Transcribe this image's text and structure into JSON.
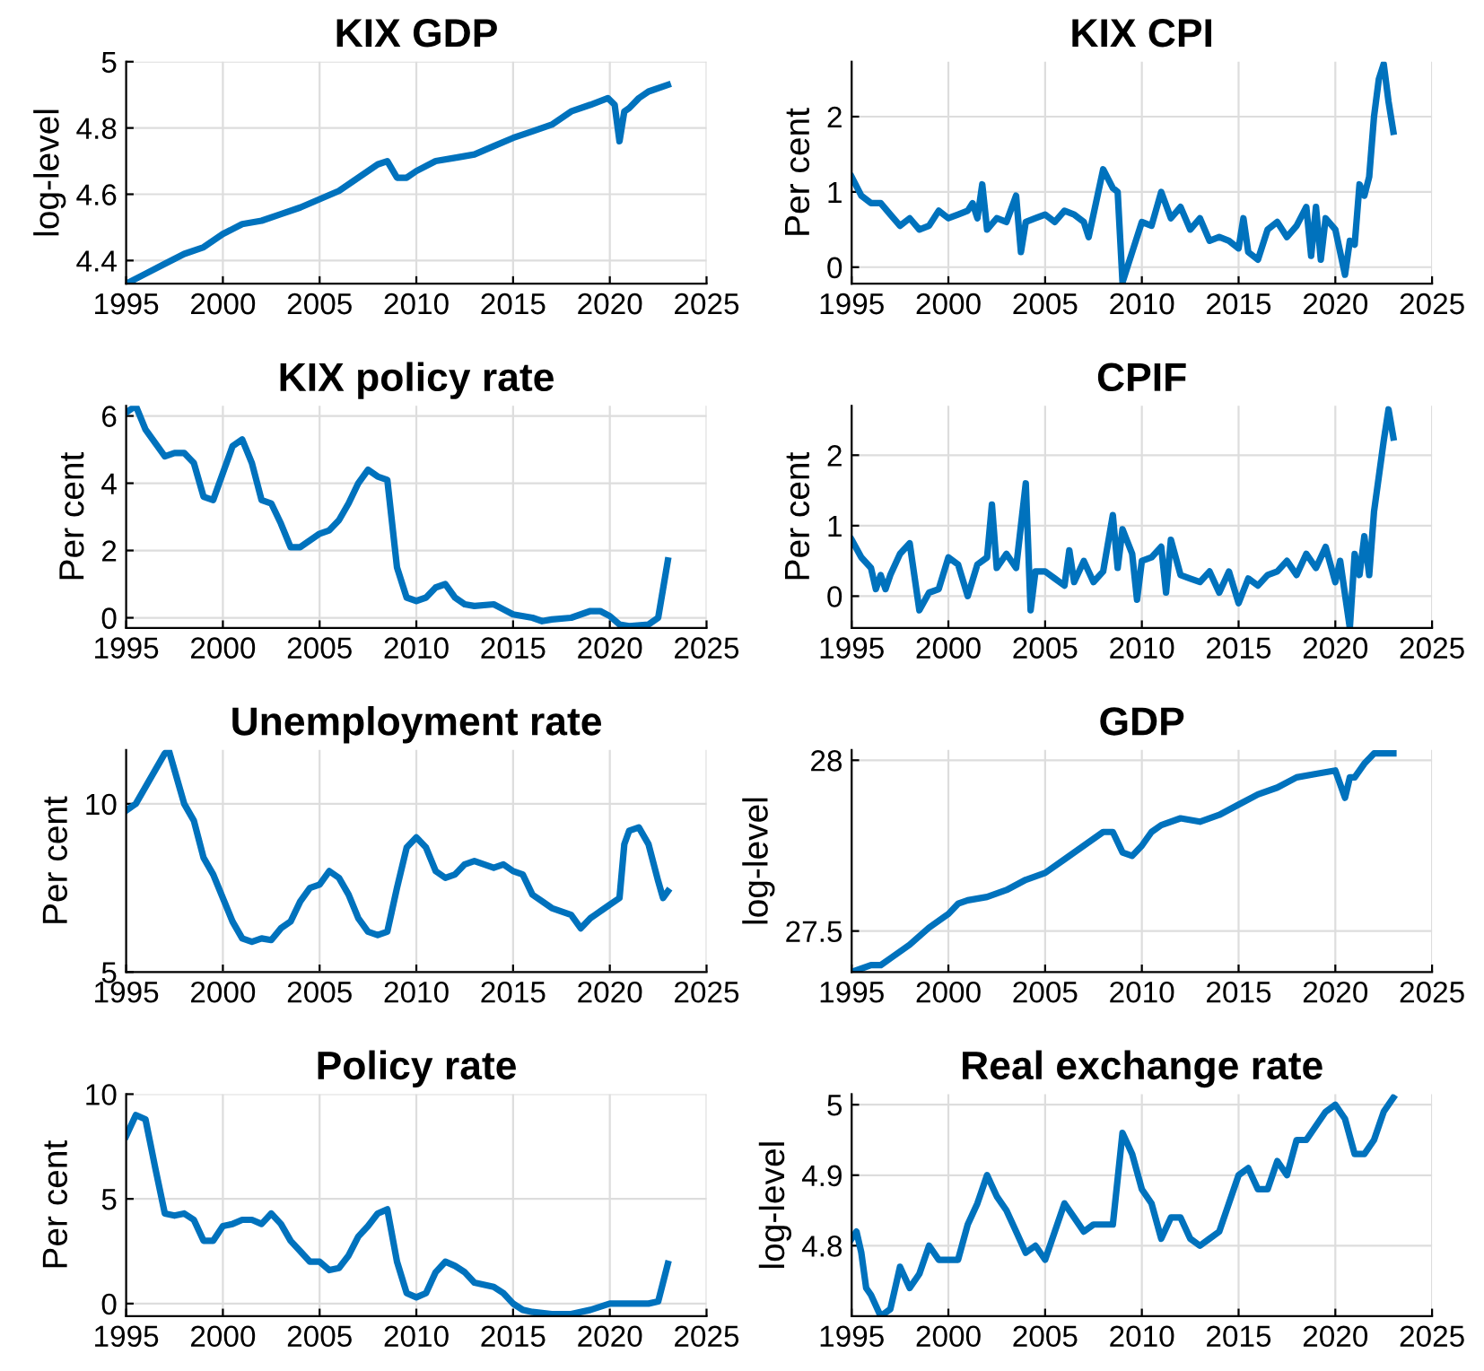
{
  "chart_data": [
    {
      "type": "line",
      "title": "KIX GDP",
      "ylabel": "log-level",
      "grid": true,
      "xlim": [
        1995,
        2025
      ],
      "xticks": [
        1995,
        2000,
        2005,
        2010,
        2015,
        2020,
        2025
      ],
      "ylim": [
        4.33,
        5.0
      ],
      "yticks": [
        4.4,
        4.6,
        4.8,
        5
      ],
      "x": [
        1995,
        1996,
        1997,
        1998,
        1999,
        2000,
        2001,
        2002,
        2003,
        2004,
        2005,
        2006,
        2007,
        2008,
        2008.5,
        2009,
        2009.5,
        2010,
        2011,
        2012,
        2013,
        2014,
        2015,
        2016,
        2017,
        2018,
        2019,
        2019.9,
        2020.25,
        2020.5,
        2020.75,
        2021,
        2021.5,
        2022,
        2023
      ],
      "series": [
        {
          "color": "#0072bd",
          "values": [
            4.33,
            4.36,
            4.39,
            4.42,
            4.44,
            4.48,
            4.51,
            4.52,
            4.54,
            4.56,
            4.585,
            4.61,
            4.65,
            4.69,
            4.7,
            4.65,
            4.65,
            4.67,
            4.7,
            4.71,
            4.72,
            4.745,
            4.77,
            4.79,
            4.81,
            4.85,
            4.87,
            4.89,
            4.87,
            4.76,
            4.85,
            4.86,
            4.89,
            4.91,
            4.93
          ]
        }
      ]
    },
    {
      "type": "line",
      "title": "KIX CPI",
      "ylabel": "Per cent",
      "grid": true,
      "xlim": [
        1995,
        2025
      ],
      "xticks": [
        1995,
        2000,
        2005,
        2010,
        2015,
        2020,
        2025
      ],
      "ylim": [
        -0.22,
        2.73
      ],
      "yticks": [
        0,
        1,
        2
      ],
      "x": [
        1995,
        1995.5,
        1996,
        1996.5,
        1997,
        1997.5,
        1998,
        1998.5,
        1999,
        1999.5,
        2000,
        2000.5,
        2001,
        2001.25,
        2001.5,
        2001.75,
        2002,
        2002.5,
        2003,
        2003.5,
        2003.75,
        2004,
        2004.5,
        2005,
        2005.5,
        2006,
        2006.5,
        2007,
        2007.25,
        2007.5,
        2008,
        2008.5,
        2008.75,
        2009,
        2009.5,
        2010,
        2010.5,
        2011,
        2011.5,
        2012,
        2012.5,
        2013,
        2013.5,
        2014,
        2014.5,
        2015,
        2015.25,
        2015.5,
        2016,
        2016.5,
        2017,
        2017.5,
        2018,
        2018.5,
        2018.75,
        2019,
        2019.25,
        2019.5,
        2020,
        2020.5,
        2020.75,
        2021,
        2021.25,
        2021.5,
        2021.75,
        2022,
        2022.25,
        2022.5,
        2022.75,
        2023
      ],
      "series": [
        {
          "color": "#0072bd",
          "values": [
            1.2,
            0.95,
            0.85,
            0.85,
            0.7,
            0.55,
            0.65,
            0.5,
            0.55,
            0.75,
            0.65,
            0.7,
            0.75,
            0.85,
            0.65,
            1.1,
            0.5,
            0.65,
            0.6,
            0.95,
            0.2,
            0.6,
            0.65,
            0.7,
            0.6,
            0.75,
            0.7,
            0.6,
            0.4,
            0.7,
            1.3,
            1.05,
            1.0,
            -0.2,
            0.2,
            0.6,
            0.55,
            1.0,
            0.65,
            0.8,
            0.5,
            0.65,
            0.35,
            0.4,
            0.35,
            0.25,
            0.65,
            0.2,
            0.1,
            0.5,
            0.6,
            0.4,
            0.55,
            0.8,
            0.15,
            0.8,
            0.1,
            0.65,
            0.5,
            -0.1,
            0.35,
            0.3,
            1.1,
            0.95,
            1.2,
            2.0,
            2.5,
            2.7,
            2.2,
            1.8
          ]
        }
      ]
    },
    {
      "type": "line",
      "title": "KIX policy rate",
      "ylabel": "Per cent",
      "grid": true,
      "xlim": [
        1995,
        2025
      ],
      "xticks": [
        1995,
        2000,
        2005,
        2010,
        2015,
        2020,
        2025
      ],
      "ylim": [
        -0.3,
        6.3
      ],
      "yticks": [
        0,
        2,
        4,
        6
      ],
      "x": [
        1995,
        1995.5,
        1996,
        1996.5,
        1997,
        1997.5,
        1998,
        1998.5,
        1999,
        1999.5,
        2000,
        2000.5,
        2001,
        2001.5,
        2002,
        2002.5,
        2003,
        2003.5,
        2004,
        2004.5,
        2005,
        2005.5,
        2006,
        2006.5,
        2007,
        2007.5,
        2008,
        2008.5,
        2009,
        2009.5,
        2010,
        2010.5,
        2011,
        2011.5,
        2012,
        2012.5,
        2013,
        2014,
        2014.5,
        2015,
        2016,
        2016.5,
        2017,
        2018,
        2019,
        2019.5,
        2020,
        2020.5,
        2021,
        2022,
        2022.5,
        2023
      ],
      "series": [
        {
          "color": "#0072bd",
          "values": [
            6.1,
            6.3,
            5.6,
            5.2,
            4.8,
            4.9,
            4.9,
            4.6,
            3.6,
            3.5,
            4.3,
            5.1,
            5.3,
            4.6,
            3.5,
            3.4,
            2.8,
            2.1,
            2.1,
            2.3,
            2.5,
            2.6,
            2.9,
            3.4,
            4.0,
            4.4,
            4.2,
            4.1,
            1.5,
            0.6,
            0.5,
            0.6,
            0.9,
            1.0,
            0.6,
            0.4,
            0.35,
            0.4,
            0.25,
            0.1,
            0.0,
            -0.1,
            -0.05,
            0.0,
            0.2,
            0.2,
            0.05,
            -0.2,
            -0.25,
            -0.2,
            0.0,
            1.7
          ]
        }
      ]
    },
    {
      "type": "line",
      "title": "CPIF",
      "ylabel": "Per cent",
      "grid": true,
      "xlim": [
        1995,
        2025
      ],
      "xticks": [
        1995,
        2000,
        2005,
        2010,
        2015,
        2020,
        2025
      ],
      "ylim": [
        -0.45,
        2.7
      ],
      "yticks": [
        0,
        1,
        2
      ],
      "x": [
        1995,
        1995.5,
        1996,
        1996.25,
        1996.5,
        1996.75,
        1997,
        1997.5,
        1998,
        1998.5,
        1999,
        1999.5,
        2000,
        2000.5,
        2001,
        2001.5,
        2002,
        2002.25,
        2002.5,
        2003,
        2003.5,
        2004,
        2004.25,
        2004.5,
        2005,
        2005.5,
        2006,
        2006.25,
        2006.5,
        2007,
        2007.5,
        2008,
        2008.5,
        2008.75,
        2009,
        2009.5,
        2009.75,
        2010,
        2010.5,
        2011,
        2011.25,
        2011.5,
        2012,
        2012.5,
        2013,
        2013.5,
        2014,
        2014.5,
        2015,
        2015.5,
        2016,
        2016.5,
        2017,
        2017.5,
        2018,
        2018.5,
        2019,
        2019.5,
        2020,
        2020.25,
        2020.75,
        2021,
        2021.25,
        2021.5,
        2021.75,
        2022,
        2022.5,
        2022.75,
        2023
      ],
      "series": [
        {
          "color": "#0072bd",
          "values": [
            0.8,
            0.55,
            0.4,
            0.1,
            0.3,
            0.1,
            0.3,
            0.6,
            0.75,
            -0.2,
            0.05,
            0.1,
            0.55,
            0.45,
            0.0,
            0.45,
            0.55,
            1.3,
            0.4,
            0.6,
            0.4,
            1.6,
            -0.2,
            0.35,
            0.35,
            0.25,
            0.15,
            0.65,
            0.2,
            0.5,
            0.2,
            0.35,
            1.15,
            0.4,
            0.95,
            0.6,
            -0.05,
            0.5,
            0.55,
            0.7,
            0.05,
            0.8,
            0.3,
            0.25,
            0.2,
            0.35,
            0.05,
            0.35,
            -0.1,
            0.25,
            0.15,
            0.3,
            0.35,
            0.5,
            0.3,
            0.6,
            0.4,
            0.7,
            0.2,
            0.5,
            -0.45,
            0.6,
            0.3,
            0.85,
            0.3,
            1.2,
            2.2,
            2.65,
            2.25
          ]
        }
      ]
    },
    {
      "type": "line",
      "title": "Unemployment rate",
      "ylabel": "Per cent",
      "grid": true,
      "xlim": [
        1995,
        2025
      ],
      "xticks": [
        1995,
        2000,
        2005,
        2010,
        2015,
        2020,
        2025
      ],
      "ylim": [
        5,
        11.6
      ],
      "yticks": [
        5,
        10
      ],
      "x": [
        1995,
        1995.5,
        1996,
        1996.5,
        1997,
        1997.2,
        1997.5,
        1998,
        1998.5,
        1999,
        1999.5,
        2000,
        2000.5,
        2001,
        2001.5,
        2002,
        2002.5,
        2003,
        2003.5,
        2004,
        2004.5,
        2005,
        2005.5,
        2006,
        2006.5,
        2007,
        2007.5,
        2008,
        2008.5,
        2009,
        2009.5,
        2010,
        2010.5,
        2011,
        2011.5,
        2012,
        2012.5,
        2013,
        2014,
        2014.5,
        2015,
        2015.5,
        2016,
        2016.5,
        2017,
        2017.5,
        2018,
        2018.5,
        2019,
        2019.5,
        2020,
        2020.5,
        2020.75,
        2021,
        2021.5,
        2022,
        2022.5,
        2022.75,
        2023
      ],
      "series": [
        {
          "color": "#0072bd",
          "values": [
            9.8,
            10.0,
            10.5,
            11.0,
            11.5,
            11.6,
            11.0,
            10.0,
            9.5,
            8.4,
            7.9,
            7.2,
            6.5,
            6.0,
            5.9,
            6.0,
            5.95,
            6.3,
            6.5,
            7.1,
            7.5,
            7.6,
            8.0,
            7.8,
            7.3,
            6.6,
            6.2,
            6.1,
            6.2,
            7.5,
            8.7,
            9.0,
            8.7,
            8.0,
            7.8,
            7.9,
            8.2,
            8.3,
            8.1,
            8.2,
            8.0,
            7.9,
            7.3,
            7.1,
            6.9,
            6.8,
            6.7,
            6.3,
            6.6,
            6.8,
            7.0,
            7.2,
            8.8,
            9.2,
            9.3,
            8.8,
            7.7,
            7.2,
            7.4
          ]
        }
      ]
    },
    {
      "type": "line",
      "title": "GDP",
      "ylabel": "log-level",
      "grid": true,
      "xlim": [
        1995,
        2025
      ],
      "xticks": [
        1995,
        2000,
        2005,
        2010,
        2015,
        2020,
        2025
      ],
      "ylim": [
        27.38,
        28.03
      ],
      "yticks": [
        27.5,
        28
      ],
      "x": [
        1995,
        1996,
        1996.5,
        1997,
        1998,
        1999,
        2000,
        2000.5,
        2001,
        2002,
        2003,
        2004,
        2005,
        2006,
        2007,
        2008,
        2008.5,
        2009,
        2009.5,
        2010,
        2010.5,
        2011,
        2012,
        2013,
        2014,
        2015,
        2016,
        2017,
        2018,
        2019,
        2020,
        2020.5,
        2020.75,
        2021,
        2021.5,
        2022,
        2023
      ],
      "series": [
        {
          "color": "#0072bd",
          "values": [
            27.38,
            27.4,
            27.4,
            27.42,
            27.46,
            27.51,
            27.55,
            27.58,
            27.59,
            27.6,
            27.62,
            27.65,
            27.67,
            27.71,
            27.75,
            27.79,
            27.79,
            27.73,
            27.72,
            27.75,
            27.79,
            27.81,
            27.83,
            27.82,
            27.84,
            27.87,
            27.9,
            27.92,
            27.95,
            27.96,
            27.97,
            27.89,
            27.95,
            27.95,
            27.99,
            28.02,
            28.02
          ]
        }
      ]
    },
    {
      "type": "line",
      "title": "Policy rate",
      "ylabel": "Per cent",
      "grid": true,
      "xlim": [
        1995,
        2025
      ],
      "xticks": [
        1995,
        2000,
        2005,
        2010,
        2015,
        2020,
        2025
      ],
      "ylim": [
        -0.6,
        10
      ],
      "yticks": [
        0,
        5,
        10
      ],
      "x": [
        1995,
        1995.5,
        1996,
        1996.5,
        1997,
        1997.5,
        1998,
        1998.5,
        1999,
        1999.5,
        2000,
        2000.5,
        2001,
        2001.5,
        2002,
        2002.5,
        2003,
        2003.5,
        2004,
        2004.5,
        2005,
        2005.5,
        2006,
        2006.5,
        2007,
        2007.5,
        2008,
        2008.5,
        2009,
        2009.5,
        2010,
        2010.5,
        2011,
        2011.5,
        2012,
        2012.5,
        2013,
        2014,
        2014.5,
        2015,
        2015.5,
        2016,
        2017,
        2018,
        2019,
        2020,
        2021,
        2022,
        2022.5,
        2023
      ],
      "series": [
        {
          "color": "#0072bd",
          "values": [
            8.0,
            9.0,
            8.8,
            6.5,
            4.3,
            4.2,
            4.3,
            4.0,
            3.0,
            3.0,
            3.7,
            3.8,
            4.0,
            4.0,
            3.8,
            4.3,
            3.8,
            3.0,
            2.5,
            2.0,
            2.0,
            1.6,
            1.7,
            2.3,
            3.2,
            3.7,
            4.3,
            4.5,
            2.0,
            0.5,
            0.3,
            0.5,
            1.5,
            2.0,
            1.8,
            1.5,
            1.0,
            0.8,
            0.5,
            0.0,
            -0.3,
            -0.4,
            -0.5,
            -0.5,
            -0.3,
            0.0,
            0.0,
            0.0,
            0.1,
            1.9
          ]
        }
      ]
    },
    {
      "type": "line",
      "title": "Real exchange rate",
      "ylabel": "log-level",
      "grid": true,
      "xlim": [
        1995,
        2025
      ],
      "xticks": [
        1995,
        2000,
        2005,
        2010,
        2015,
        2020,
        2025
      ],
      "ylim": [
        4.7,
        5.015
      ],
      "yticks": [
        4.8,
        4.9,
        5
      ],
      "x": [
        1995,
        1995.25,
        1995.5,
        1995.75,
        1996,
        1996.5,
        1997,
        1997.5,
        1998,
        1998.5,
        1999,
        1999.5,
        2000,
        2000.5,
        2001,
        2001.5,
        2002,
        2002.5,
        2003,
        2003.5,
        2004,
        2004.5,
        2005,
        2005.5,
        2006,
        2006.5,
        2007,
        2007.5,
        2008,
        2008.5,
        2009,
        2009.5,
        2010,
        2010.5,
        2011,
        2011.5,
        2012,
        2012.5,
        2013,
        2013.5,
        2014,
        2014.5,
        2015,
        2015.5,
        2016,
        2016.5,
        2017,
        2017.5,
        2018,
        2018.5,
        2019,
        2019.5,
        2020,
        2020.5,
        2021,
        2021.5,
        2022,
        2022.5,
        2023
      ],
      "series": [
        {
          "color": "#0072bd",
          "values": [
            4.81,
            4.82,
            4.79,
            4.74,
            4.73,
            4.7,
            4.71,
            4.77,
            4.74,
            4.76,
            4.8,
            4.78,
            4.78,
            4.78,
            4.83,
            4.86,
            4.9,
            4.87,
            4.85,
            4.82,
            4.79,
            4.8,
            4.78,
            4.82,
            4.86,
            4.84,
            4.82,
            4.83,
            4.83,
            4.83,
            4.96,
            4.93,
            4.88,
            4.86,
            4.81,
            4.84,
            4.84,
            4.81,
            4.8,
            4.81,
            4.82,
            4.86,
            4.9,
            4.91,
            4.88,
            4.88,
            4.92,
            4.9,
            4.95,
            4.95,
            4.97,
            4.99,
            5.0,
            4.98,
            4.93,
            4.93,
            4.95,
            4.99,
            5.01
          ]
        }
      ]
    }
  ]
}
